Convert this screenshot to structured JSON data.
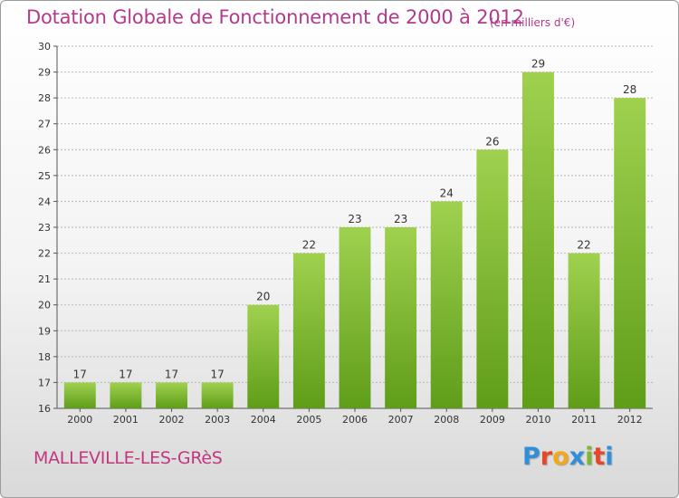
{
  "header": {
    "title": "Dotation Globale de Fonctionnement de 2000 à 2012",
    "unit": "(en milliers d'€)"
  },
  "footer": {
    "municipality": "MALLEVILLE-LES-GRèS",
    "brand": "Proxiti",
    "brand_letters": [
      "P",
      "r",
      "o",
      "x",
      "i",
      "t",
      "i"
    ],
    "brand_colors": [
      "#2f8fd8",
      "#e8462a",
      "#f2a81d",
      "#2f8fd8",
      "#7cb82f",
      "#e8462a",
      "#2f8fd8"
    ]
  },
  "colors": {
    "bar_top": "#9fd14f",
    "bar_bottom": "#5f9d18",
    "grid": "#b8b8b8",
    "text": "#333333",
    "title": "#b23a8c"
  },
  "chart_data": {
    "type": "bar",
    "title": "Dotation Globale de Fonctionnement de 2000 à 2012",
    "subtitle": "(en milliers d'€)",
    "xlabel": "",
    "ylabel": "",
    "categories": [
      "2000",
      "2001",
      "2002",
      "2003",
      "2004",
      "2005",
      "2006",
      "2007",
      "2008",
      "2009",
      "2010",
      "2011",
      "2012"
    ],
    "values": [
      17,
      17,
      17,
      17,
      20,
      22,
      23,
      23,
      24,
      26,
      29,
      22,
      28
    ],
    "ylim": [
      16,
      30
    ],
    "yticks": [
      16,
      17,
      18,
      19,
      20,
      21,
      22,
      23,
      24,
      25,
      26,
      27,
      28,
      29,
      30
    ],
    "grid": true,
    "data_labels": true,
    "legend": "none"
  }
}
